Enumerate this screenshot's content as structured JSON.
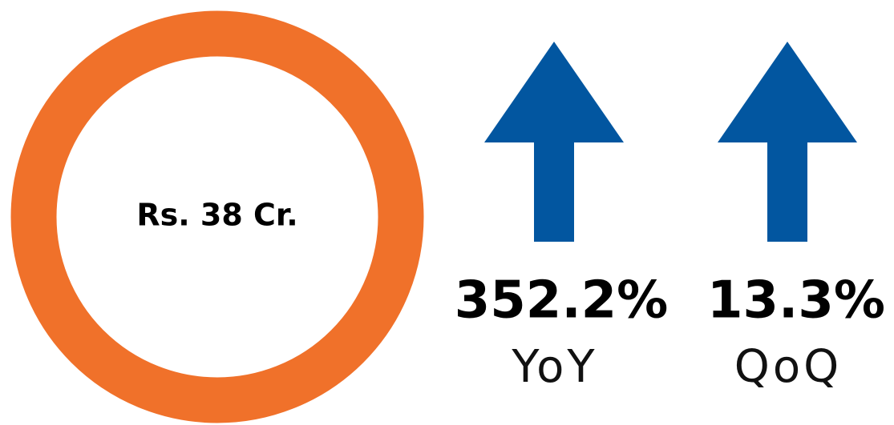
{
  "amount": "Rs. 38 Cr.",
  "metrics": [
    {
      "value": "352.2%",
      "label": "YoY"
    },
    {
      "value": "13.3%",
      "label": "QoQ"
    }
  ]
}
